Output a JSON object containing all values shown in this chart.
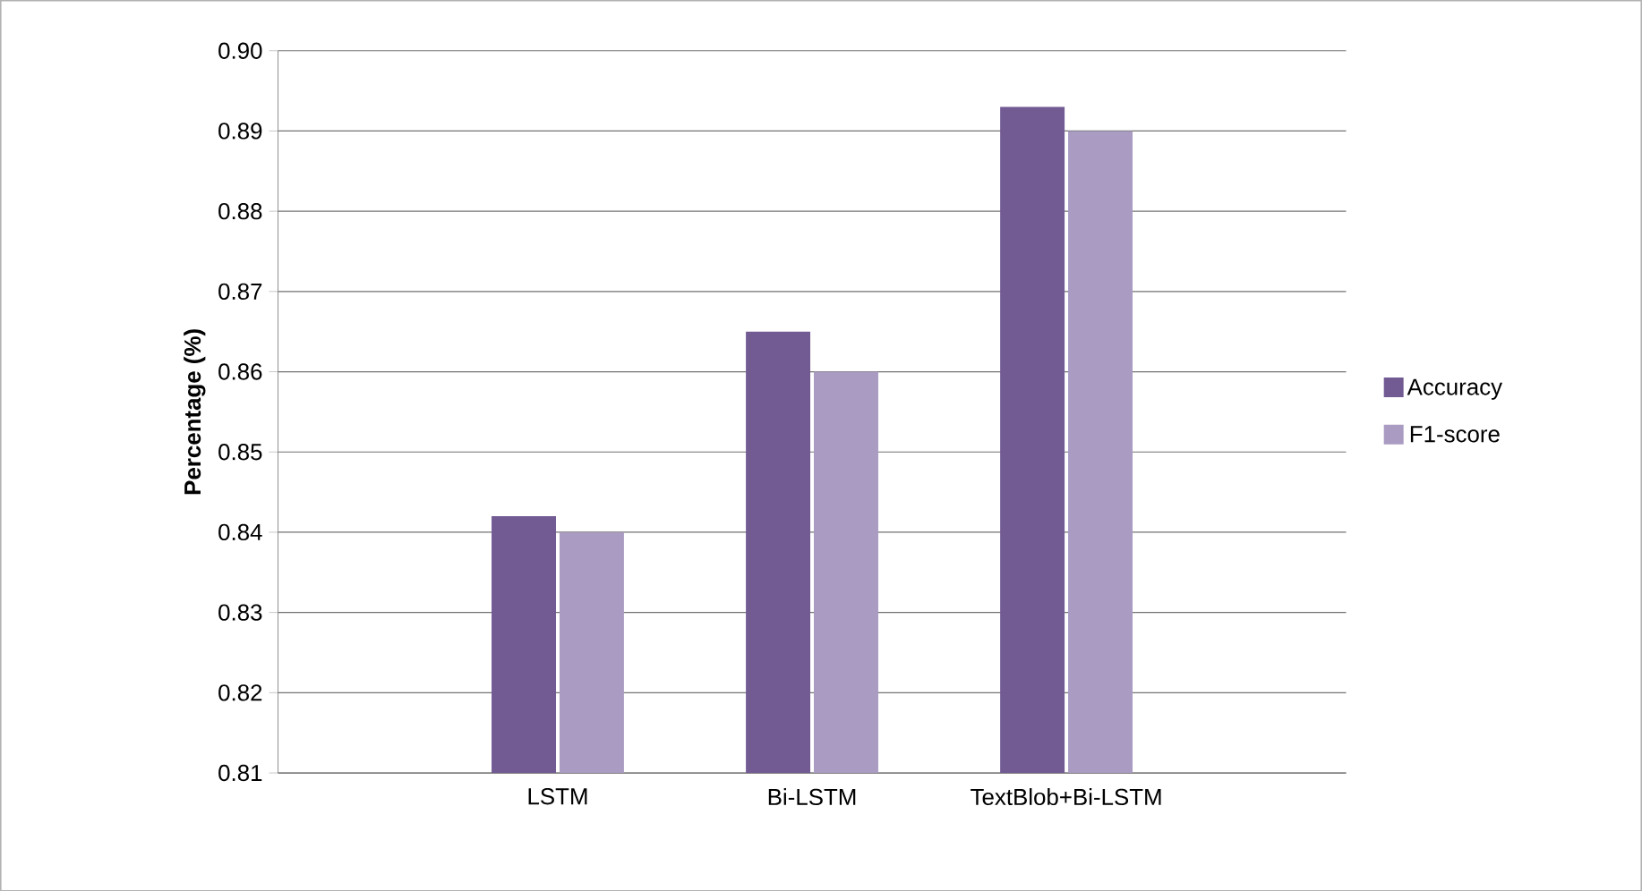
{
  "chart_data": {
    "type": "bar",
    "ylabel": "Percentage (%)",
    "categories": [
      "LSTM",
      "Bi-LSTM",
      "TextBlob+Bi-LSTM"
    ],
    "series": [
      {
        "name": "Accuracy",
        "color": "#725a93",
        "values": [
          0.842,
          0.865,
          0.893
        ]
      },
      {
        "name": "F1-score",
        "color": "#a99bc1",
        "values": [
          0.84,
          0.86,
          0.89
        ]
      }
    ],
    "ylim": [
      0.81,
      0.9
    ],
    "yticks": [
      0.81,
      0.82,
      0.83,
      0.84,
      0.85,
      0.86,
      0.87,
      0.88,
      0.89,
      {
        "value": 0.9,
        "label": "0.90"
      }
    ],
    "grid": "y",
    "legend": "right"
  }
}
